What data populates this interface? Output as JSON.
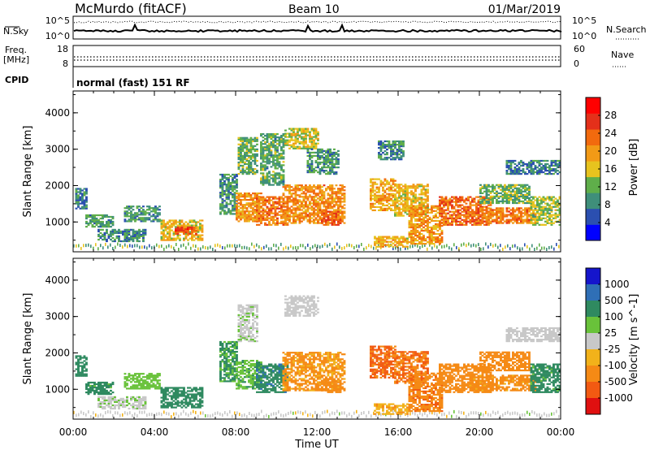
{
  "header": {
    "station": "McMurdo (fitACF)",
    "beam": "Beam 10",
    "date": "01/Mar/2019"
  },
  "summary_panels": {
    "nsky_label": "N.Sky",
    "nsky_ticks": [
      "10^5",
      "10^0"
    ],
    "nsearch_label": "N.Search",
    "freq_label_1": "Freq.",
    "freq_label_2": "[MHz]",
    "freq_ticks": [
      "18",
      "8"
    ],
    "nave_label": "Nave",
    "nave_ticks": [
      "60",
      "0"
    ],
    "cpid_label": "CPID",
    "cpid_value": "normal (fast) 151 RF"
  },
  "colors": {
    "power_scale": [
      "#0000ff",
      "#2b4fb0",
      "#3f8f7a",
      "#5fae4a",
      "#e7c31e",
      "#f29a16",
      "#f26a0e",
      "#e4301a",
      "#ff0000"
    ],
    "velocity_scale": [
      "#1515cc",
      "#2f6fb6",
      "#2f8a60",
      "#69c23a",
      "#c8c8c8",
      "#f2b21a",
      "#f58a15",
      "#f25a12",
      "#e01010"
    ],
    "nodata": "#ffffff"
  },
  "chart_data": [
    {
      "type": "heatmap",
      "name": "power",
      "xlabel": "Time UT",
      "ylabel": "Slant Range [km]",
      "x_ticks": [
        "00:00",
        "04:00",
        "08:00",
        "12:00",
        "16:00",
        "20:00",
        "00:00"
      ],
      "xlim_hours": [
        0,
        24
      ],
      "y_ticks": [
        1000,
        2000,
        3000,
        4000
      ],
      "ylim_km": [
        180,
        4600
      ],
      "colorbar": {
        "label": "Power [dB]",
        "ticks": [
          4,
          8,
          12,
          16,
          20,
          24,
          28
        ],
        "range": [
          0,
          32
        ]
      },
      "echo_regions": [
        {
          "t0": 0.1,
          "t1": 0.7,
          "r0": 1350,
          "r1": 1900,
          "v": 8
        },
        {
          "t0": 0.6,
          "t1": 2.0,
          "r0": 850,
          "r1": 1200,
          "v": 10
        },
        {
          "t0": 1.2,
          "t1": 3.6,
          "r0": 450,
          "r1": 800,
          "v": 9
        },
        {
          "t0": 2.5,
          "t1": 4.3,
          "r0": 1000,
          "r1": 1450,
          "v": 10
        },
        {
          "t0": 4.3,
          "t1": 6.3,
          "r0": 480,
          "r1": 1050,
          "v": 17
        },
        {
          "t0": 5.0,
          "t1": 6.0,
          "r0": 650,
          "r1": 850,
          "v": 25
        },
        {
          "t0": 7.2,
          "t1": 8.0,
          "r0": 1200,
          "r1": 2300,
          "v": 10
        },
        {
          "t0": 8.0,
          "t1": 9.2,
          "r0": 1000,
          "r1": 1800,
          "v": 20
        },
        {
          "t0": 8.1,
          "t1": 9.0,
          "r0": 2300,
          "r1": 3300,
          "v": 12
        },
        {
          "t0": 9.0,
          "t1": 10.5,
          "r0": 900,
          "r1": 1700,
          "v": 22
        },
        {
          "t0": 9.2,
          "t1": 10.3,
          "r0": 2000,
          "r1": 3400,
          "v": 11
        },
        {
          "t0": 10.3,
          "t1": 13.3,
          "r0": 950,
          "r1": 2000,
          "v": 21
        },
        {
          "t0": 10.4,
          "t1": 12.0,
          "r0": 3000,
          "r1": 3550,
          "v": 15
        },
        {
          "t0": 11.5,
          "t1": 13.0,
          "r0": 2300,
          "r1": 3000,
          "v": 10
        },
        {
          "t0": 12.2,
          "t1": 13.1,
          "r0": 900,
          "r1": 1300,
          "v": 24
        },
        {
          "t0": 14.6,
          "t1": 15.8,
          "r0": 1300,
          "r1": 2200,
          "v": 19
        },
        {
          "t0": 14.8,
          "t1": 16.5,
          "r0": 300,
          "r1": 600,
          "v": 18
        },
        {
          "t0": 15.0,
          "t1": 16.3,
          "r0": 2700,
          "r1": 3200,
          "v": 9
        },
        {
          "t0": 15.8,
          "t1": 17.5,
          "r0": 1150,
          "r1": 2050,
          "v": 17
        },
        {
          "t0": 16.5,
          "t1": 18.2,
          "r0": 380,
          "r1": 1450,
          "v": 20
        },
        {
          "t0": 18.0,
          "t1": 20.6,
          "r0": 900,
          "r1": 1700,
          "v": 23
        },
        {
          "t0": 19.5,
          "t1": 22.8,
          "r0": 950,
          "r1": 1400,
          "v": 22
        },
        {
          "t0": 20.0,
          "t1": 22.5,
          "r0": 1500,
          "r1": 2000,
          "v": 12
        },
        {
          "t0": 21.3,
          "t1": 24.0,
          "r0": 2300,
          "r1": 2700,
          "v": 8
        },
        {
          "t0": 22.5,
          "t1": 24.0,
          "r0": 900,
          "r1": 1700,
          "v": 14
        }
      ]
    },
    {
      "type": "heatmap",
      "name": "velocity",
      "xlabel": "Time UT",
      "ylabel": "Slant Range [km]",
      "x_ticks": [
        "00:00",
        "04:00",
        "08:00",
        "12:00",
        "16:00",
        "20:00",
        "00:00"
      ],
      "xlim_hours": [
        0,
        24
      ],
      "y_ticks": [
        1000,
        2000,
        3000,
        4000
      ],
      "ylim_km": [
        180,
        4600
      ],
      "colorbar": {
        "label": "Velocity [m s^-1]",
        "ticks": [
          "1000",
          "500",
          "100",
          "25",
          "-25",
          "-100",
          "-500",
          "-1000"
        ]
      },
      "echo_regions": [
        {
          "t0": 0.1,
          "t1": 0.7,
          "r0": 1350,
          "r1": 1900,
          "v": 200
        },
        {
          "t0": 0.6,
          "t1": 2.0,
          "r0": 850,
          "r1": 1200,
          "v": 150
        },
        {
          "t0": 1.2,
          "t1": 3.6,
          "r0": 450,
          "r1": 800,
          "v": 20
        },
        {
          "t0": 2.5,
          "t1": 4.3,
          "r0": 1000,
          "r1": 1450,
          "v": 60
        },
        {
          "t0": 4.3,
          "t1": 6.3,
          "r0": 480,
          "r1": 1050,
          "v": 300
        },
        {
          "t0": 7.2,
          "t1": 8.0,
          "r0": 1200,
          "r1": 2300,
          "v": 120
        },
        {
          "t0": 8.0,
          "t1": 9.2,
          "r0": 1000,
          "r1": 1800,
          "v": 80
        },
        {
          "t0": 8.1,
          "t1": 9.0,
          "r0": 2300,
          "r1": 3300,
          "v": 20
        },
        {
          "t0": 9.0,
          "t1": 10.5,
          "r0": 900,
          "r1": 1700,
          "v": 400
        },
        {
          "t0": 10.3,
          "t1": 13.3,
          "r0": 950,
          "r1": 2000,
          "v": -120
        },
        {
          "t0": 10.4,
          "t1": 12.0,
          "r0": 3000,
          "r1": 3550,
          "v": 10
        },
        {
          "t0": 12.2,
          "t1": 13.1,
          "r0": 900,
          "r1": 1300,
          "v": -200
        },
        {
          "t0": 14.6,
          "t1": 15.8,
          "r0": 1300,
          "r1": 2200,
          "v": -600
        },
        {
          "t0": 14.8,
          "t1": 16.5,
          "r0": 300,
          "r1": 600,
          "v": -80
        },
        {
          "t0": 15.8,
          "t1": 17.5,
          "r0": 1150,
          "r1": 2050,
          "v": -500
        },
        {
          "t0": 16.5,
          "t1": 18.2,
          "r0": 380,
          "r1": 1450,
          "v": -400
        },
        {
          "t0": 18.0,
          "t1": 20.6,
          "r0": 900,
          "r1": 1700,
          "v": -250
        },
        {
          "t0": 19.5,
          "t1": 22.8,
          "r0": 950,
          "r1": 1400,
          "v": -150
        },
        {
          "t0": 20.0,
          "t1": 22.5,
          "r0": 1500,
          "r1": 2000,
          "v": -300
        },
        {
          "t0": 21.3,
          "t1": 24.0,
          "r0": 2300,
          "r1": 2700,
          "v": 15
        },
        {
          "t0": 22.5,
          "t1": 24.0,
          "r0": 900,
          "r1": 1700,
          "v": 150
        }
      ]
    }
  ]
}
